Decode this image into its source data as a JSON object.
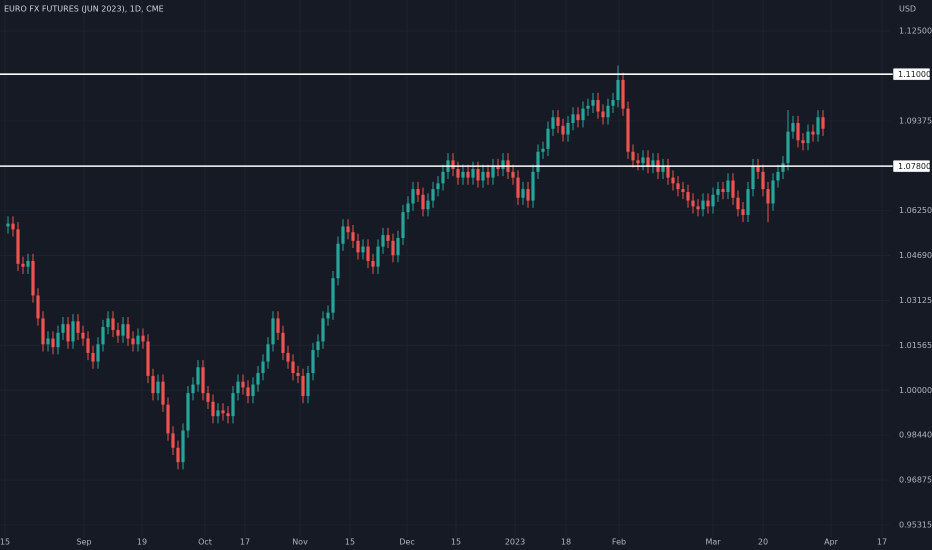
{
  "chart_data": {
    "type": "candlestick",
    "title": "EURO FX FUTURES (JUN 2023), 1D, CME",
    "currency": "USD",
    "up_color": "#26a69a",
    "down_color": "#ef5350",
    "grid": true,
    "xlim": [
      -1.6,
      176.4
    ],
    "ylim": [
      0.9486,
      1.1358
    ],
    "yticks": [
      {
        "value": 1.125,
        "label": "1.12500"
      },
      {
        "value": 1.09375,
        "label": "1.09375"
      },
      {
        "value": 1.0625,
        "label": "1.06250"
      },
      {
        "value": 1.0469,
        "label": "1.04690"
      },
      {
        "value": 1.03125,
        "label": "1.03125"
      },
      {
        "value": 1.01565,
        "label": "1.01565"
      },
      {
        "value": 1.0,
        "label": "1.00000"
      },
      {
        "value": 0.9844,
        "label": "0.98440"
      },
      {
        "value": 0.96875,
        "label": "0.96875"
      },
      {
        "value": 0.95315,
        "label": "0.95315"
      }
    ],
    "xticks": [
      {
        "value": -0.6,
        "label": "15"
      },
      {
        "value": 15.2,
        "label": "Sep"
      },
      {
        "value": 26.8,
        "label": "19"
      },
      {
        "value": 39.4,
        "label": "Oct"
      },
      {
        "value": 47.4,
        "label": "17"
      },
      {
        "value": 58.4,
        "label": "Nov"
      },
      {
        "value": 68.4,
        "label": "15"
      },
      {
        "value": 79.8,
        "label": "Dec"
      },
      {
        "value": 89.6,
        "label": "15"
      },
      {
        "value": 101.4,
        "label": "2023"
      },
      {
        "value": 111.6,
        "label": "18"
      },
      {
        "value": 122.2,
        "label": "Feb"
      },
      {
        "value": 141,
        "label": "Mar"
      },
      {
        "value": 151,
        "label": "20"
      },
      {
        "value": 164.6,
        "label": "Apr"
      },
      {
        "value": 174.8,
        "label": "17"
      }
    ],
    "levels": [
      {
        "value": 1.11,
        "label": "1.11000"
      },
      {
        "value": 1.078,
        "label": "1.07800"
      }
    ],
    "open": [
      1.057,
      1.058,
      1.056,
      1.044,
      1.043,
      1.045,
      1.033,
      1.025,
      1.016,
      1.018,
      1.015,
      1.02,
      1.023,
      1.017,
      1.024,
      1.02,
      1.018,
      1.013,
      1.01,
      1.016,
      1.022,
      1.025,
      1.021,
      1.019,
      1.023,
      1.018,
      1.016,
      1.019,
      1.017,
      1.005,
      0.999,
      1.003,
      0.995,
      0.985,
      0.98,
      0.975,
      0.986,
      0.999,
      1.002,
      1.008,
      0.999,
      0.996,
      0.991,
      0.993,
      0.992,
      0.991,
      0.999,
      1.003,
      1.001,
      0.998,
      1.002,
      1.006,
      1.01,
      1.016,
      1.025,
      1.02,
      1.013,
      1.01,
      1.006,
      1.005,
      0.998,
      1.006,
      1.014,
      1.017,
      1.025,
      1.027,
      1.039,
      1.051,
      1.057,
      1.055,
      1.052,
      1.048,
      1.05,
      1.045,
      1.043,
      1.05,
      1.054,
      1.052,
      1.047,
      1.053,
      1.062,
      1.065,
      1.07,
      1.068,
      1.063,
      1.066,
      1.07,
      1.072,
      1.076,
      1.08,
      1.077,
      1.074,
      1.076,
      1.074,
      1.077,
      1.073,
      1.076,
      1.074,
      1.078,
      1.077,
      1.08,
      1.076,
      1.074,
      1.067,
      1.07,
      1.066,
      1.076,
      1.083,
      1.084,
      1.091,
      1.095,
      1.092,
      1.089,
      1.093,
      1.096,
      1.094,
      1.098,
      1.099,
      1.101,
      1.097,
      1.095,
      1.099,
      1.101,
      1.108,
      1.098,
      1.083,
      1.08,
      1.079,
      1.081,
      1.078,
      1.08,
      1.076,
      1.078,
      1.074,
      1.072,
      1.07,
      1.069,
      1.066,
      1.064,
      1.063,
      1.066,
      1.064,
      1.068,
      1.07,
      1.069,
      1.073,
      1.067,
      1.063,
      1.061,
      1.07,
      1.078,
      1.076,
      1.07,
      1.065,
      1.073,
      1.076,
      1.079,
      1.09,
      1.093,
      1.087,
      1.086,
      1.09,
      1.089,
      1.095
    ],
    "high": [
      1.0605,
      1.0605,
      1.0585,
      1.0465,
      1.0475,
      1.0475,
      1.0355,
      1.0275,
      1.0205,
      1.0205,
      1.0225,
      1.0255,
      1.0255,
      1.0265,
      1.0265,
      1.0225,
      1.0205,
      1.0155,
      1.0185,
      1.0245,
      1.0275,
      1.0275,
      1.0235,
      1.0255,
      1.0255,
      1.0205,
      1.0215,
      1.0215,
      1.0195,
      1.0075,
      1.0055,
      1.0055,
      0.9975,
      0.9875,
      0.9825,
      0.9885,
      1.0015,
      1.0045,
      1.0105,
      1.0105,
      1.0015,
      0.9985,
      0.9955,
      0.9955,
      0.9945,
      1.0015,
      1.0055,
      1.0055,
      1.0035,
      1.0045,
      1.0085,
      1.0125,
      1.0185,
      1.0275,
      1.0275,
      1.0225,
      1.0155,
      1.0125,
      1.0085,
      1.0075,
      1.0085,
      1.0165,
      1.0195,
      1.0275,
      1.0295,
      1.0415,
      1.0535,
      1.0595,
      1.0595,
      1.0575,
      1.0545,
      1.0525,
      1.0525,
      1.0475,
      1.0525,
      1.0565,
      1.0565,
      1.0545,
      1.0555,
      1.0645,
      1.0675,
      1.0725,
      1.0725,
      1.0705,
      1.0685,
      1.0725,
      1.0745,
      1.0785,
      1.0825,
      1.0825,
      1.0795,
      1.0785,
      1.0785,
      1.0795,
      1.0795,
      1.0785,
      1.0785,
      1.0805,
      1.0805,
      1.0825,
      1.0825,
      1.0785,
      1.0765,
      1.0725,
      1.0725,
      1.0785,
      1.0855,
      1.0865,
      1.0935,
      1.0975,
      1.0975,
      1.0945,
      1.0955,
      1.0985,
      1.0985,
      1.1005,
      1.1015,
      1.1035,
      1.1035,
      1.0995,
      1.1015,
      1.1035,
      1.113,
      1.1105,
      1.1005,
      1.0855,
      1.0825,
      1.0835,
      1.0835,
      1.0825,
      1.0825,
      1.0805,
      1.0805,
      1.0765,
      1.0745,
      1.0725,
      1.0715,
      1.0685,
      1.0665,
      1.0685,
      1.0685,
      1.0705,
      1.0725,
      1.0725,
      1.0755,
      1.0755,
      1.0695,
      1.0655,
      1.0725,
      1.0805,
      1.0805,
      1.0785,
      1.0725,
      1.0755,
      1.0785,
      1.0815,
      1.0975,
      1.0955,
      1.0955,
      1.0895,
      1.0925,
      1.0925,
      1.0975,
      1.0975
    ],
    "low": [
      1.0545,
      1.0535,
      1.0415,
      1.0405,
      1.0405,
      1.0305,
      1.0225,
      1.0135,
      1.0135,
      1.0125,
      1.0125,
      1.0175,
      1.0145,
      1.0145,
      1.0175,
      1.0155,
      1.0105,
      1.0075,
      1.0075,
      1.0135,
      1.0195,
      1.0185,
      1.0165,
      1.0165,
      1.0155,
      1.0135,
      1.0135,
      1.0145,
      1.0025,
      0.9965,
      0.9965,
      0.9925,
      0.9825,
      0.9775,
      0.9725,
      0.9725,
      0.9835,
      0.9965,
      0.9995,
      0.9965,
      0.9935,
      0.9885,
      0.9885,
      0.9895,
      0.9885,
      0.9885,
      0.9965,
      0.9985,
      0.9955,
      0.9955,
      0.9995,
      1.0035,
      1.0075,
      1.0135,
      1.0175,
      1.0105,
      1.0075,
      1.0035,
      1.0025,
      0.9955,
      0.9955,
      1.0035,
      1.0115,
      1.0145,
      1.0225,
      1.0245,
      1.0365,
      1.0485,
      1.0525,
      1.0495,
      1.0455,
      1.0455,
      1.0425,
      1.0405,
      1.0405,
      1.0475,
      1.0495,
      1.0445,
      1.0445,
      1.0505,
      1.0595,
      1.0625,
      1.0655,
      1.0605,
      1.0605,
      1.0635,
      1.0675,
      1.0695,
      1.0735,
      1.0745,
      1.0715,
      1.0715,
      1.0715,
      1.0715,
      1.0705,
      1.0705,
      1.0715,
      1.0715,
      1.0745,
      1.0745,
      1.0735,
      1.0715,
      1.0645,
      1.0645,
      1.0635,
      1.0635,
      1.0735,
      1.0805,
      1.0815,
      1.0885,
      1.0895,
      1.0865,
      1.0865,
      1.0905,
      1.0915,
      1.0915,
      1.0955,
      1.0965,
      1.0945,
      1.0925,
      1.0925,
      1.0965,
      1.0985,
      1.0955,
      1.0805,
      1.0775,
      1.0765,
      1.0765,
      1.0755,
      1.0755,
      1.0735,
      1.0735,
      1.0715,
      1.0695,
      1.0675,
      1.0665,
      1.0635,
      1.0615,
      1.0605,
      1.0605,
      1.0615,
      1.0615,
      1.0655,
      1.0665,
      1.0665,
      1.0645,
      1.0605,
      1.0585,
      1.0585,
      1.0675,
      1.0735,
      1.0675,
      1.0585,
      1.0625,
      1.0705,
      1.0735,
      1.0765,
      1.0875,
      1.0845,
      1.0835,
      1.0835,
      1.0865,
      1.0865,
      1.0885
    ],
    "close": [
      1.058,
      1.056,
      1.044,
      1.043,
      1.045,
      1.033,
      1.025,
      1.016,
      1.018,
      1.015,
      1.02,
      1.023,
      1.017,
      1.024,
      1.02,
      1.018,
      1.013,
      1.01,
      1.016,
      1.022,
      1.025,
      1.021,
      1.019,
      1.023,
      1.018,
      1.016,
      1.019,
      1.017,
      1.005,
      0.999,
      1.003,
      0.995,
      0.985,
      0.98,
      0.975,
      0.986,
      0.999,
      1.002,
      1.008,
      0.999,
      0.996,
      0.991,
      0.993,
      0.992,
      0.991,
      0.999,
      1.003,
      1.001,
      0.998,
      1.002,
      1.006,
      1.01,
      1.016,
      1.025,
      1.02,
      1.013,
      1.01,
      1.006,
      1.005,
      0.998,
      1.006,
      1.014,
      1.017,
      1.025,
      1.027,
      1.039,
      1.051,
      1.057,
      1.055,
      1.052,
      1.048,
      1.05,
      1.045,
      1.043,
      1.05,
      1.054,
      1.052,
      1.047,
      1.053,
      1.062,
      1.065,
      1.07,
      1.068,
      1.063,
      1.066,
      1.07,
      1.072,
      1.076,
      1.08,
      1.077,
      1.074,
      1.076,
      1.074,
      1.077,
      1.073,
      1.076,
      1.074,
      1.078,
      1.077,
      1.08,
      1.076,
      1.074,
      1.067,
      1.07,
      1.066,
      1.076,
      1.083,
      1.084,
      1.091,
      1.095,
      1.092,
      1.089,
      1.093,
      1.096,
      1.094,
      1.098,
      1.099,
      1.101,
      1.097,
      1.095,
      1.099,
      1.101,
      1.108,
      1.098,
      1.083,
      1.08,
      1.079,
      1.081,
      1.078,
      1.08,
      1.076,
      1.078,
      1.074,
      1.072,
      1.07,
      1.069,
      1.066,
      1.064,
      1.063,
      1.066,
      1.064,
      1.068,
      1.07,
      1.069,
      1.073,
      1.067,
      1.063,
      1.061,
      1.07,
      1.078,
      1.076,
      1.07,
      1.065,
      1.073,
      1.076,
      1.079,
      1.09,
      1.093,
      1.087,
      1.086,
      1.09,
      1.089,
      1.095,
      1.091
    ]
  }
}
